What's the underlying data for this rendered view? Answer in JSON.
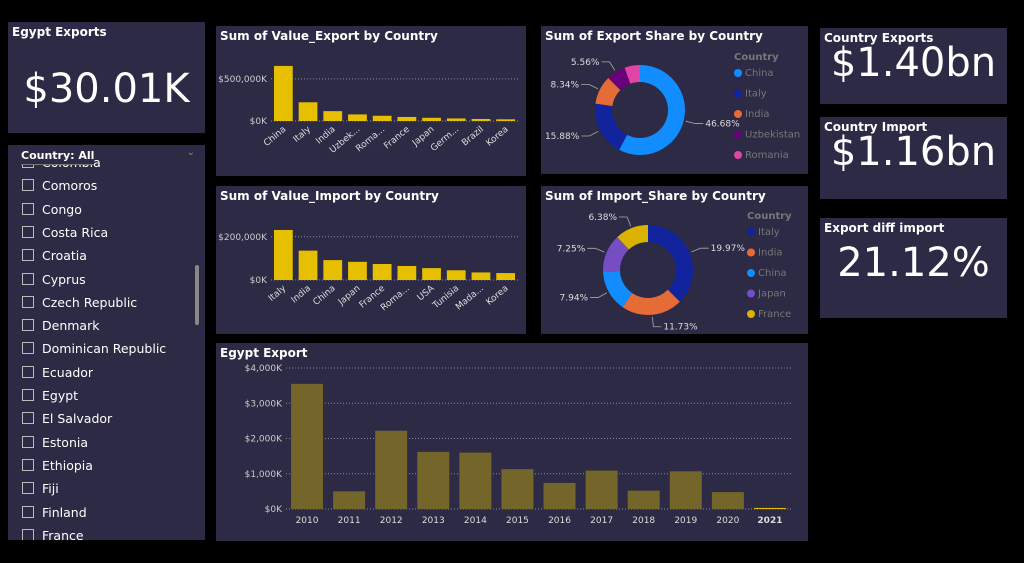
{
  "cards": [
    {
      "title": "Egypt Exports",
      "value": "$30.01K"
    },
    {
      "title": "Country Exports",
      "value": "$1.40bn"
    },
    {
      "title": "Country Import",
      "value": "$1.16bn"
    },
    {
      "title": "Export diff import",
      "value": "21.12%"
    }
  ],
  "slicer": {
    "header": "Country: All",
    "items": [
      "Colombia",
      "Comoros",
      "Congo",
      "Costa Rica",
      "Croatia",
      "Cyprus",
      "Czech Republic",
      "Denmark",
      "Dominican Republic",
      "Ecuador",
      "Egypt",
      "El Salvador",
      "Estonia",
      "Ethiopia",
      "Fiji",
      "Finland",
      "France"
    ]
  },
  "chart_data": [
    {
      "type": "bar",
      "title": "Sum of Value_Export by Country",
      "categories": [
        "China",
        "Italy",
        "India",
        "Uzbek...",
        "Roma...",
        "France",
        "Japan",
        "Germ...",
        "Brazil",
        "Korea"
      ],
      "values": [
        653500,
        222000,
        117000,
        78000,
        62000,
        48000,
        38000,
        30000,
        24000,
        20000
      ],
      "color": "#e6c000",
      "rotate_labels": true,
      "grid": true,
      "ylim": [
        0,
        700000
      ],
      "yticks": [
        {
          "value": 0,
          "label": "$0K"
        },
        {
          "value": 500000,
          "label": "$500,000K"
        }
      ]
    },
    {
      "type": "donut",
      "title": "Sum of Export Share by Country",
      "legend_title": "Country",
      "categories": [
        "China",
        "Italy",
        "India",
        "Uzbekistan",
        "Romania"
      ],
      "values": [
        46.68,
        15.88,
        8.34,
        5.56,
        4.5
      ],
      "value_labels": [
        "46.68%",
        "15.88%",
        "8.34%",
        "5.56%",
        null
      ],
      "colors": [
        "#118dff",
        "#12239e",
        "#e66c37",
        "#6b007b",
        "#e044a7"
      ]
    },
    {
      "type": "bar",
      "title": "Sum of Value_Import by Country",
      "categories": [
        "Italy",
        "India",
        "China",
        "Japan",
        "France",
        "Roma...",
        "USA",
        "Tunisia",
        "Mada...",
        "Korea"
      ],
      "values": [
        231650,
        136000,
        92100,
        84100,
        74000,
        65000,
        55000,
        45000,
        35000,
        32000
      ],
      "color": "#e6c000",
      "rotate_labels": true,
      "grid": true,
      "ylim": [
        0,
        250000
      ],
      "yticks": [
        {
          "value": 0,
          "label": "$0K"
        },
        {
          "value": 200000,
          "label": "$200,000K"
        }
      ]
    },
    {
      "type": "donut",
      "title": "Sum of Import_Share by Country",
      "legend_title": "Country",
      "categories": [
        "Italy",
        "India",
        "China",
        "Japan",
        "France"
      ],
      "values": [
        19.97,
        11.73,
        7.94,
        7.25,
        6.38
      ],
      "value_labels": [
        "19.97%",
        "11.73%",
        "7.94%",
        "7.25%",
        "6.38%"
      ],
      "colors": [
        "#12239e",
        "#e66c37",
        "#118dff",
        "#744ec2",
        "#d9b300"
      ]
    },
    {
      "type": "bar",
      "title": "Egypt Export",
      "categories": [
        "2010",
        "2011",
        "2012",
        "2013",
        "2014",
        "2015",
        "2016",
        "2017",
        "2018",
        "2019",
        "2020",
        "2021"
      ],
      "values": [
        3550,
        500,
        2220,
        1620,
        1600,
        1130,
        740,
        1090,
        520,
        1070,
        480,
        30
      ],
      "color": "#74662a",
      "selected_color": "#e6c000",
      "colors": [
        "#74662a",
        "#74662a",
        "#74662a",
        "#74662a",
        "#74662a",
        "#74662a",
        "#74662a",
        "#74662a",
        "#74662a",
        "#74662a",
        "#74662a",
        "#e6c000"
      ],
      "rotate_labels": false,
      "grid": true,
      "ylim": [
        0,
        4000
      ],
      "yticks": [
        {
          "value": 0,
          "label": "$0K"
        },
        {
          "value": 1000,
          "label": "$1,000K"
        },
        {
          "value": 2000,
          "label": "$2,000K"
        },
        {
          "value": 3000,
          "label": "$3,000K"
        },
        {
          "value": 4000,
          "label": "$4,000K"
        }
      ]
    }
  ]
}
